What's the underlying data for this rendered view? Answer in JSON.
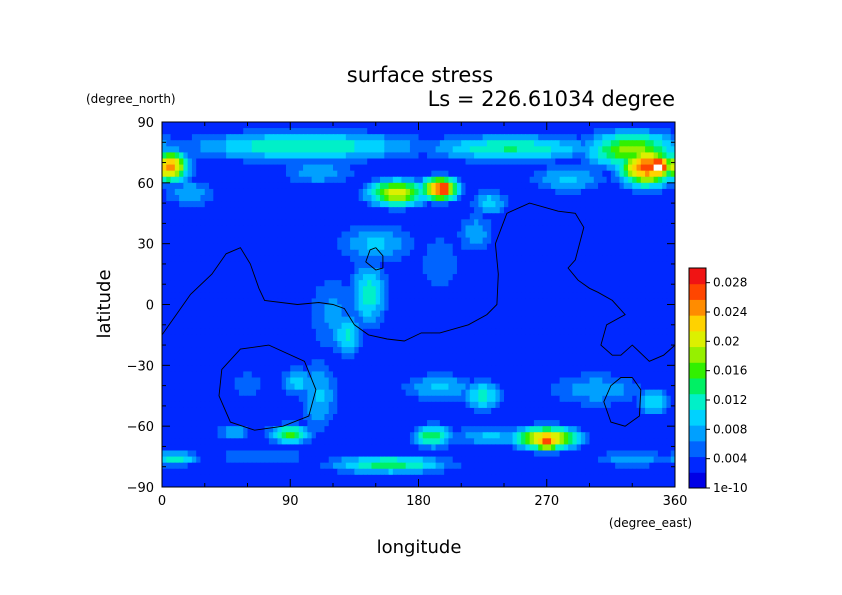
{
  "chart_data": {
    "type": "heatmap",
    "title": "surface stress",
    "subtitle": "Ls = 226.61034 degree",
    "xlabel": "longitude",
    "ylabel": "latitude",
    "xunit": "(degree_east)",
    "yunit": "(degree_north)",
    "xlim": [
      0,
      360
    ],
    "ylim": [
      -90,
      90
    ],
    "xticks": [
      "0",
      "90",
      "180",
      "270",
      "360"
    ],
    "yticks": [
      "90",
      "60",
      "30",
      "0",
      "−30",
      "−60",
      "−90"
    ],
    "colorbar": {
      "min": 0,
      "max": 0.03,
      "labels": [
        "0.028",
        "0.024",
        "0.02",
        "0.016",
        "0.012",
        "0.008",
        "0.004",
        "1e-10"
      ],
      "label_values": [
        0.028,
        0.024,
        0.02,
        0.016,
        0.012,
        0.008,
        0.004,
        0
      ],
      "colors": [
        "#0000e6",
        "#0028ff",
        "#0064ff",
        "#00a0ff",
        "#00d2ff",
        "#00f0c8",
        "#00f064",
        "#32f000",
        "#96f000",
        "#dcf000",
        "#ffd200",
        "#ff8c00",
        "#ff4600",
        "#f01414",
        "#ffffff"
      ]
    },
    "field": {
      "background": 0.003,
      "features": [
        {
          "lon": 5,
          "lat": 68,
          "rlon": 14,
          "rlat": 8,
          "v": 0.025
        },
        {
          "lon": 100,
          "lat": 78,
          "rlon": 90,
          "rlat": 8,
          "v": 0.013
        },
        {
          "lon": 245,
          "lat": 77,
          "rlon": 65,
          "rlat": 7,
          "v": 0.013
        },
        {
          "lon": 330,
          "lat": 76,
          "rlon": 35,
          "rlat": 10,
          "v": 0.018
        },
        {
          "lon": 340,
          "lat": 68,
          "rlon": 20,
          "rlat": 10,
          "v": 0.027
        },
        {
          "lon": 348,
          "lat": 68,
          "rlon": 10,
          "rlat": 6,
          "v": 0.033
        },
        {
          "lon": 285,
          "lat": 62,
          "rlon": 30,
          "rlat": 8,
          "v": 0.009
        },
        {
          "lon": 20,
          "lat": 55,
          "rlon": 22,
          "rlat": 8,
          "v": 0.008
        },
        {
          "lon": 110,
          "lat": 65,
          "rlon": 30,
          "rlat": 8,
          "v": 0.008
        },
        {
          "lon": 165,
          "lat": 55,
          "rlon": 22,
          "rlat": 7,
          "v": 0.021
        },
        {
          "lon": 195,
          "lat": 57,
          "rlon": 14,
          "rlat": 6,
          "v": 0.027
        },
        {
          "lon": 198,
          "lat": 57,
          "rlon": 6,
          "rlat": 4,
          "v": 0.032
        },
        {
          "lon": 230,
          "lat": 50,
          "rlon": 14,
          "rlat": 7,
          "v": 0.01
        },
        {
          "lon": 150,
          "lat": 30,
          "rlon": 30,
          "rlat": 12,
          "v": 0.009
        },
        {
          "lon": 145,
          "lat": 5,
          "rlon": 14,
          "rlat": 18,
          "v": 0.012
        },
        {
          "lon": 130,
          "lat": -15,
          "rlon": 12,
          "rlat": 12,
          "v": 0.011
        },
        {
          "lon": 120,
          "lat": -5,
          "rlon": 22,
          "rlat": 25,
          "v": 0.007
        },
        {
          "lon": 195,
          "lat": 20,
          "rlon": 20,
          "rlat": 20,
          "v": 0.006
        },
        {
          "lon": 220,
          "lat": 35,
          "rlon": 15,
          "rlat": 12,
          "v": 0.008
        },
        {
          "lon": 110,
          "lat": -45,
          "rlon": 15,
          "rlat": 20,
          "v": 0.009
        },
        {
          "lon": 95,
          "lat": -38,
          "rlon": 12,
          "rlat": 8,
          "v": 0.01
        },
        {
          "lon": 60,
          "lat": -40,
          "rlon": 22,
          "rlat": 15,
          "v": 0.005
        },
        {
          "lon": 90,
          "lat": -64,
          "rlon": 16,
          "rlat": 5,
          "v": 0.016
        },
        {
          "lon": 50,
          "lat": -63,
          "rlon": 12,
          "rlat": 5,
          "v": 0.009
        },
        {
          "lon": 195,
          "lat": -41,
          "rlon": 30,
          "rlat": 8,
          "v": 0.009
        },
        {
          "lon": 225,
          "lat": -45,
          "rlon": 14,
          "rlat": 8,
          "v": 0.012
        },
        {
          "lon": 305,
          "lat": -42,
          "rlon": 40,
          "rlat": 10,
          "v": 0.008
        },
        {
          "lon": 345,
          "lat": -48,
          "rlon": 14,
          "rlat": 8,
          "v": 0.01
        },
        {
          "lon": 190,
          "lat": -65,
          "rlon": 15,
          "rlat": 6,
          "v": 0.015
        },
        {
          "lon": 270,
          "lat": -66,
          "rlon": 24,
          "rlat": 6,
          "v": 0.023
        },
        {
          "lon": 270,
          "lat": -68,
          "rlon": 12,
          "rlat": 4,
          "v": 0.027
        },
        {
          "lon": 230,
          "lat": -65,
          "rlon": 30,
          "rlat": 6,
          "v": 0.009
        },
        {
          "lon": 160,
          "lat": -79,
          "rlon": 45,
          "rlat": 5,
          "v": 0.014
        },
        {
          "lon": 10,
          "lat": -76,
          "rlon": 18,
          "rlat": 4,
          "v": 0.012
        },
        {
          "lon": 330,
          "lat": -76,
          "rlon": 30,
          "rlat": 5,
          "v": 0.008
        },
        {
          "lon": 70,
          "lat": -75,
          "rlon": 40,
          "rlat": 5,
          "v": 0.007
        },
        {
          "lon": 300,
          "lat": 30,
          "rlon": 30,
          "rlat": 20,
          "v": 0.004
        },
        {
          "lon": 40,
          "lat": 10,
          "rlon": 30,
          "rlat": 20,
          "v": 0.004
        }
      ]
    },
    "contours": [
      [
        [
          0,
          -15
        ],
        [
          10,
          -5
        ],
        [
          20,
          5
        ],
        [
          35,
          15
        ],
        [
          45,
          25
        ],
        [
          55,
          28
        ],
        [
          62,
          20
        ],
        [
          68,
          8
        ],
        [
          72,
          2
        ],
        [
          95,
          0
        ],
        [
          110,
          1
        ],
        [
          120,
          0
        ],
        [
          128,
          -2
        ],
        [
          135,
          -10
        ],
        [
          145,
          -15
        ],
        [
          158,
          -17
        ],
        [
          170,
          -18
        ],
        [
          182,
          -14
        ],
        [
          195,
          -14
        ],
        [
          215,
          -10
        ],
        [
          228,
          -5
        ],
        [
          235,
          0
        ],
        [
          236,
          15
        ],
        [
          234,
          30
        ],
        [
          242,
          45
        ],
        [
          258,
          50
        ],
        [
          278,
          46
        ],
        [
          290,
          45
        ],
        [
          296,
          38
        ],
        [
          290,
          22
        ],
        [
          285,
          18
        ],
        [
          292,
          12
        ],
        [
          300,
          8
        ],
        [
          306,
          6
        ],
        [
          316,
          2
        ],
        [
          325,
          -5
        ],
        [
          312,
          -10
        ],
        [
          308,
          -20
        ],
        [
          316,
          -25
        ],
        [
          322,
          -25
        ],
        [
          330,
          -20
        ],
        [
          342,
          -28
        ],
        [
          352,
          -25
        ],
        [
          360,
          -20
        ]
      ],
      [
        [
          150,
          28
        ],
        [
          155,
          24
        ],
        [
          155,
          18
        ],
        [
          150,
          17
        ],
        [
          143,
          21
        ],
        [
          146,
          27
        ],
        [
          150,
          28
        ]
      ],
      [
        [
          75,
          -20
        ],
        [
          100,
          -28
        ],
        [
          108,
          -42
        ],
        [
          103,
          -55
        ],
        [
          85,
          -60
        ],
        [
          65,
          -62
        ],
        [
          48,
          -58
        ],
        [
          40,
          -45
        ],
        [
          42,
          -32
        ],
        [
          55,
          -22
        ],
        [
          75,
          -20
        ]
      ],
      [
        [
          330,
          -36
        ],
        [
          336,
          -42
        ],
        [
          335,
          -55
        ],
        [
          325,
          -60
        ],
        [
          315,
          -58
        ],
        [
          310,
          -48
        ],
        [
          315,
          -40
        ],
        [
          322,
          -36
        ],
        [
          330,
          -36
        ]
      ]
    ]
  }
}
